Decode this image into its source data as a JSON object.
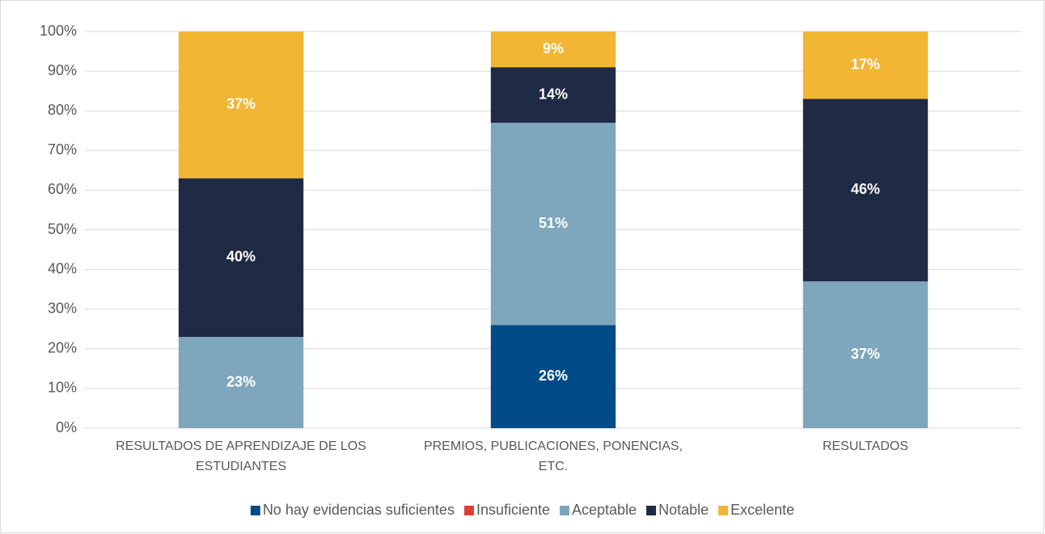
{
  "chart_data": {
    "type": "stacked_bar",
    "categories": [
      "RESULTADOS DE APRENDIZAJE DE LOS ESTUDIANTES",
      "PREMIOS, PUBLICACIONES, PONENCIAS, ETC.",
      "RESULTADOS"
    ],
    "series": [
      {
        "name": "No hay evidencias suficientes",
        "color": "#004a87",
        "values": [
          0,
          26,
          0
        ],
        "value_labels": [
          null,
          "26%",
          null
        ]
      },
      {
        "name": "Insuficiente",
        "color": "#e03c31",
        "values": [
          0,
          0,
          0
        ],
        "value_labels": [
          null,
          null,
          null
        ]
      },
      {
        "name": "Aceptable",
        "color": "#7ea6bc",
        "values": [
          23,
          51,
          37
        ],
        "value_labels": [
          "23%",
          "51%",
          "37%"
        ]
      },
      {
        "name": "Notable",
        "color": "#1f2a44",
        "values": [
          40,
          14,
          46
        ],
        "value_labels": [
          "40%",
          "14%",
          "46%"
        ]
      },
      {
        "name": "Excelente",
        "color": "#f2b534",
        "values": [
          37,
          9,
          17
        ],
        "value_labels": [
          "37%",
          "9%",
          "17%"
        ]
      }
    ],
    "ylim": [
      0,
      100
    ],
    "yticks": [
      {
        "value": 0,
        "label": "0%"
      },
      {
        "value": 10,
        "label": "10%"
      },
      {
        "value": 20,
        "label": "20%"
      },
      {
        "value": 30,
        "label": "30%"
      },
      {
        "value": 40,
        "label": "40%"
      },
      {
        "value": 50,
        "label": "50%"
      },
      {
        "value": 60,
        "label": "60%"
      },
      {
        "value": 70,
        "label": "70%"
      },
      {
        "value": 80,
        "label": "80%"
      },
      {
        "value": 90,
        "label": "90%"
      },
      {
        "value": 100,
        "label": "100%"
      }
    ],
    "grid": true,
    "legend": "bottom"
  }
}
